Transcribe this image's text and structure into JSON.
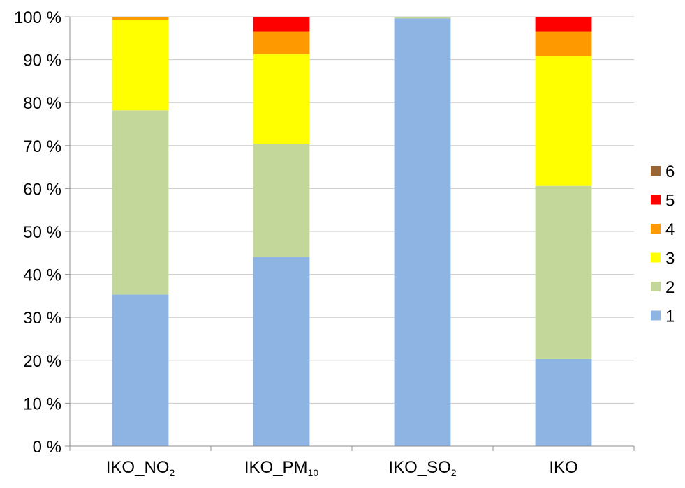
{
  "chart_data": {
    "type": "bar",
    "stacked": true,
    "percent_stacked": true,
    "categories": [
      {
        "main": "IKO_NO",
        "sub": "2"
      },
      {
        "main": "IKO_PM",
        "sub": "10"
      },
      {
        "main": "IKO_SO",
        "sub": "2"
      },
      {
        "main": "IKO",
        "sub": ""
      }
    ],
    "series": [
      {
        "name": "1",
        "color": "#8EB4E3",
        "values": [
          35.3,
          44.1,
          99.6,
          20.3
        ]
      },
      {
        "name": "2",
        "color": "#C4D79B",
        "values": [
          42.9,
          26.3,
          0.4,
          40.3
        ]
      },
      {
        "name": "3",
        "color": "#FFFF00",
        "values": [
          21.1,
          20.9,
          0.0,
          30.3
        ]
      },
      {
        "name": "4",
        "color": "#FF9900",
        "values": [
          0.7,
          5.2,
          0.0,
          5.6
        ]
      },
      {
        "name": "5",
        "color": "#FF0000",
        "values": [
          0.0,
          3.5,
          0.0,
          3.5
        ]
      },
      {
        "name": "6",
        "color": "#996633",
        "values": [
          0.0,
          0.0,
          0.0,
          0.0
        ]
      }
    ],
    "y_ticks": [
      "0 %",
      "10 %",
      "20 %",
      "30 %",
      "40 %",
      "50 %",
      "60 %",
      "70 %",
      "80 %",
      "90 %",
      "100 %"
    ],
    "ylim": [
      0,
      100
    ],
    "grid": true,
    "legend": "right",
    "title": "",
    "xlabel": "",
    "ylabel": ""
  }
}
